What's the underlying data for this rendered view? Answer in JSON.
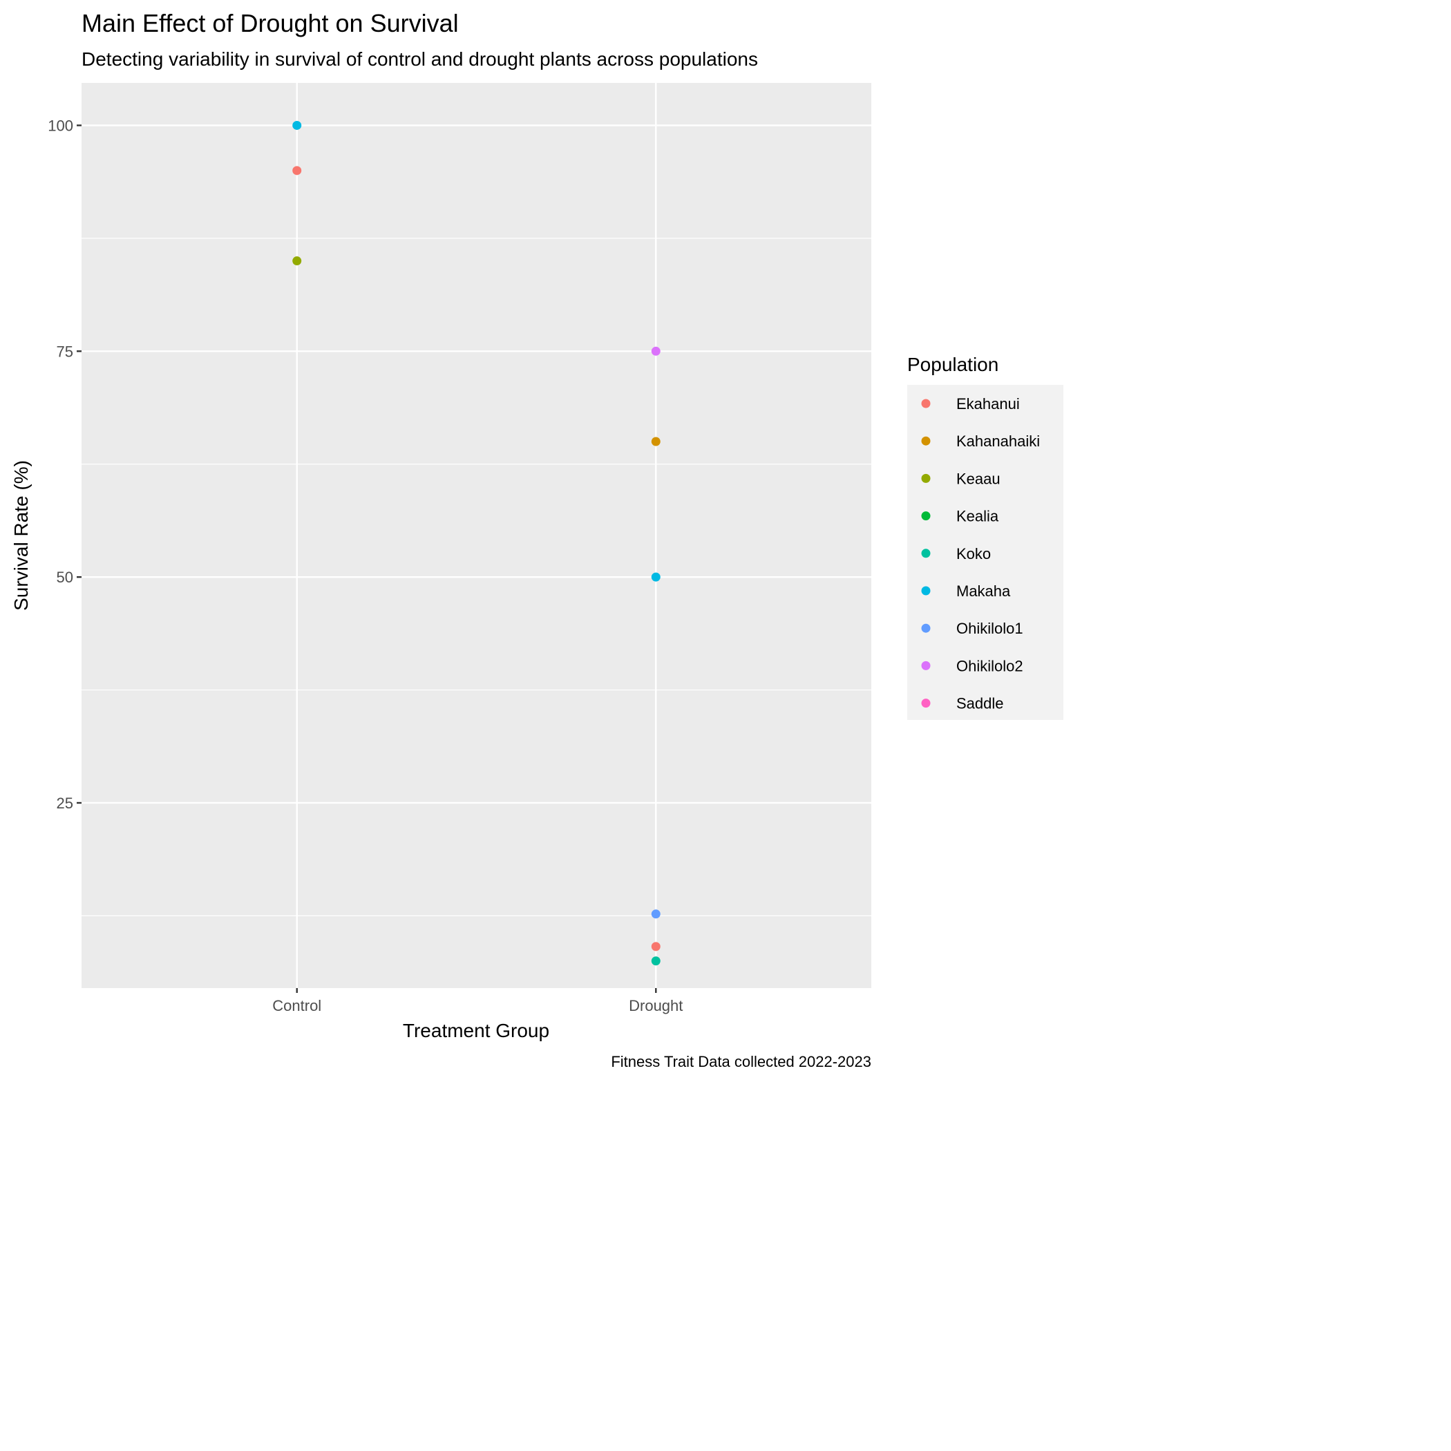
{
  "chart_data": {
    "type": "scatter",
    "title": "Main Effect of Drought on Survival",
    "subtitle": "Detecting variability in survival of control and drought plants across populations",
    "xlabel": "Treatment Group",
    "ylabel": "Survival Rate (%)",
    "caption": "Fitness Trait Data collected 2022-2023",
    "categories": [
      "Control",
      "Drought"
    ],
    "ylim": [
      4.5,
      104.7
    ],
    "y_ticks": [
      25,
      50,
      75,
      100
    ],
    "y_minor": [
      37.5,
      62.5,
      87.5,
      12.5
    ],
    "grid": true,
    "legend": {
      "title": "Population",
      "position": "right"
    },
    "series": [
      {
        "name": "Ekahanui",
        "color": "#F8766D",
        "points": [
          [
            "Control",
            95
          ],
          [
            "Drought",
            9.1
          ]
        ]
      },
      {
        "name": "Kahanahaiki",
        "color": "#D39200",
        "points": [
          [
            "Drought",
            65
          ]
        ]
      },
      {
        "name": "Keaau",
        "color": "#93AA00",
        "points": [
          [
            "Control",
            85
          ]
        ]
      },
      {
        "name": "Kealia",
        "color": "#00BA38",
        "points": []
      },
      {
        "name": "Koko",
        "color": "#00C19F",
        "points": [
          [
            "Drought",
            7.5
          ]
        ]
      },
      {
        "name": "Makaha",
        "color": "#00B9E3",
        "points": [
          [
            "Control",
            100
          ],
          [
            "Drought",
            50
          ]
        ]
      },
      {
        "name": "Ohikilolo1",
        "color": "#619CFF",
        "points": [
          [
            "Drought",
            12.7
          ]
        ]
      },
      {
        "name": "Ohikilolo2",
        "color": "#DB72FB",
        "points": [
          [
            "Drought",
            75
          ]
        ]
      },
      {
        "name": "Saddle",
        "color": "#FF61C3",
        "points": []
      }
    ]
  }
}
